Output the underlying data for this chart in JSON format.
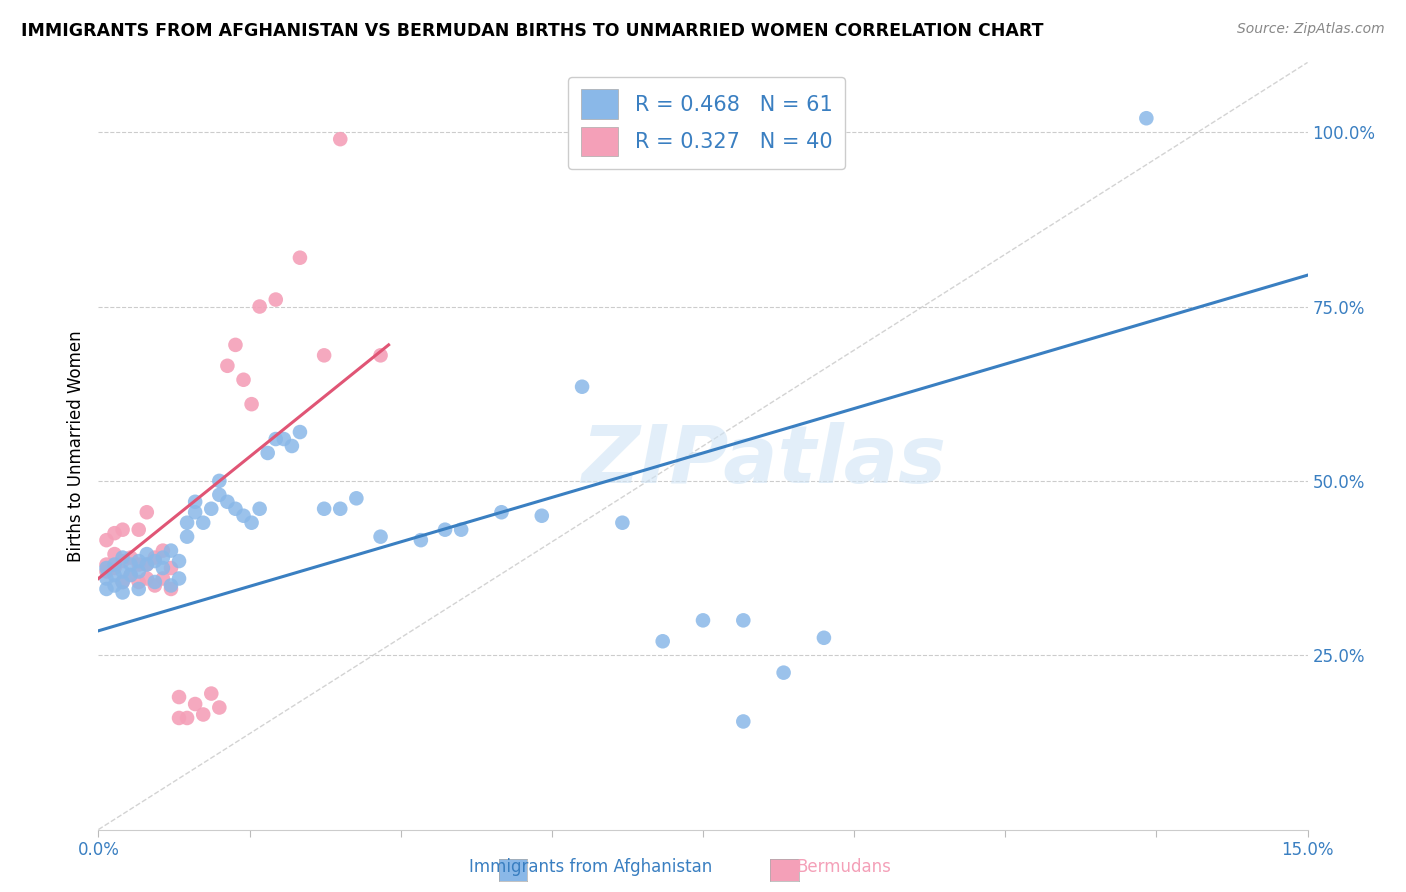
{
  "title": "IMMIGRANTS FROM AFGHANISTAN VS BERMUDAN BIRTHS TO UNMARRIED WOMEN CORRELATION CHART",
  "source": "Source: ZipAtlas.com",
  "ylabel": "Births to Unmarried Women",
  "xlim": [
    0.0,
    0.15
  ],
  "ylim": [
    0.0,
    1.1
  ],
  "y_ticks_right": [
    0.25,
    0.5,
    0.75,
    1.0
  ],
  "y_tick_labels_right": [
    "25.0%",
    "50.0%",
    "75.0%",
    "100.0%"
  ],
  "blue_R": 0.468,
  "blue_N": 61,
  "pink_R": 0.327,
  "pink_N": 40,
  "blue_color": "#8ab8e8",
  "pink_color": "#f4a0b8",
  "blue_line_color": "#3a7fc1",
  "pink_line_color": "#e05575",
  "diagonal_color": "#c8c8c8",
  "watermark": "ZIPatlas",
  "blue_line_x0": 0.0,
  "blue_line_y0": 0.285,
  "blue_line_x1": 0.15,
  "blue_line_y1": 0.795,
  "pink_line_x0": 0.0,
  "pink_line_y0": 0.36,
  "pink_line_x1": 0.036,
  "pink_line_y1": 0.695,
  "blue_scatter_x": [
    0.001,
    0.001,
    0.001,
    0.002,
    0.002,
    0.002,
    0.003,
    0.003,
    0.003,
    0.003,
    0.004,
    0.004,
    0.005,
    0.005,
    0.005,
    0.006,
    0.006,
    0.007,
    0.007,
    0.008,
    0.008,
    0.009,
    0.009,
    0.01,
    0.01,
    0.011,
    0.011,
    0.012,
    0.012,
    0.013,
    0.014,
    0.015,
    0.015,
    0.016,
    0.017,
    0.018,
    0.019,
    0.02,
    0.021,
    0.022,
    0.023,
    0.024,
    0.025,
    0.028,
    0.03,
    0.032,
    0.035,
    0.04,
    0.043,
    0.045,
    0.05,
    0.055,
    0.06,
    0.065,
    0.07,
    0.075,
    0.08,
    0.085,
    0.09,
    0.13,
    0.08
  ],
  "blue_scatter_y": [
    0.345,
    0.375,
    0.36,
    0.35,
    0.365,
    0.38,
    0.34,
    0.37,
    0.39,
    0.355,
    0.38,
    0.365,
    0.345,
    0.37,
    0.385,
    0.38,
    0.395,
    0.355,
    0.385,
    0.39,
    0.375,
    0.35,
    0.4,
    0.36,
    0.385,
    0.42,
    0.44,
    0.455,
    0.47,
    0.44,
    0.46,
    0.48,
    0.5,
    0.47,
    0.46,
    0.45,
    0.44,
    0.46,
    0.54,
    0.56,
    0.56,
    0.55,
    0.57,
    0.46,
    0.46,
    0.475,
    0.42,
    0.415,
    0.43,
    0.43,
    0.455,
    0.45,
    0.635,
    0.44,
    0.27,
    0.3,
    0.3,
    0.225,
    0.275,
    1.02,
    0.155
  ],
  "pink_scatter_x": [
    0.001,
    0.001,
    0.001,
    0.002,
    0.002,
    0.002,
    0.003,
    0.003,
    0.003,
    0.004,
    0.004,
    0.005,
    0.005,
    0.005,
    0.006,
    0.006,
    0.006,
    0.007,
    0.007,
    0.008,
    0.008,
    0.009,
    0.009,
    0.01,
    0.01,
    0.011,
    0.012,
    0.013,
    0.014,
    0.015,
    0.016,
    0.017,
    0.018,
    0.019,
    0.02,
    0.022,
    0.025,
    0.028,
    0.03,
    0.035
  ],
  "pink_scatter_y": [
    0.37,
    0.38,
    0.415,
    0.375,
    0.395,
    0.425,
    0.355,
    0.385,
    0.43,
    0.365,
    0.39,
    0.355,
    0.38,
    0.43,
    0.36,
    0.38,
    0.455,
    0.35,
    0.39,
    0.36,
    0.4,
    0.345,
    0.375,
    0.16,
    0.19,
    0.16,
    0.18,
    0.165,
    0.195,
    0.175,
    0.665,
    0.695,
    0.645,
    0.61,
    0.75,
    0.76,
    0.82,
    0.68,
    0.99,
    0.68
  ]
}
